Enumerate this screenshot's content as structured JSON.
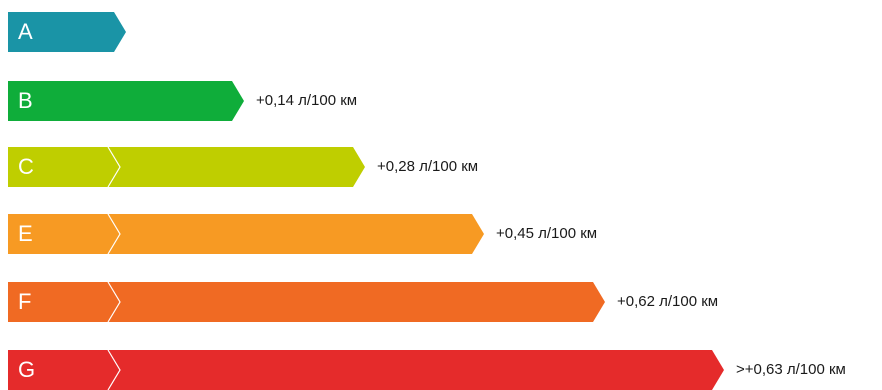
{
  "classes": [
    {
      "letter": "A",
      "color": "#1a94a6",
      "value": ""
    },
    {
      "letter": "B",
      "color": "#0fad3a",
      "value": "+0,14 л/100 км"
    },
    {
      "letter": "C",
      "color": "#bfce00",
      "value": "+0,28 л/100 км"
    },
    {
      "letter": "E",
      "color": "#f79a23",
      "value": "+0,45 л/100 км"
    },
    {
      "letter": "F",
      "color": "#f06a23",
      "value": "+0,62 л/100 км"
    },
    {
      "letter": "G",
      "color": "#e52b2b",
      "value": ">+0,63 л/100 км"
    }
  ]
}
